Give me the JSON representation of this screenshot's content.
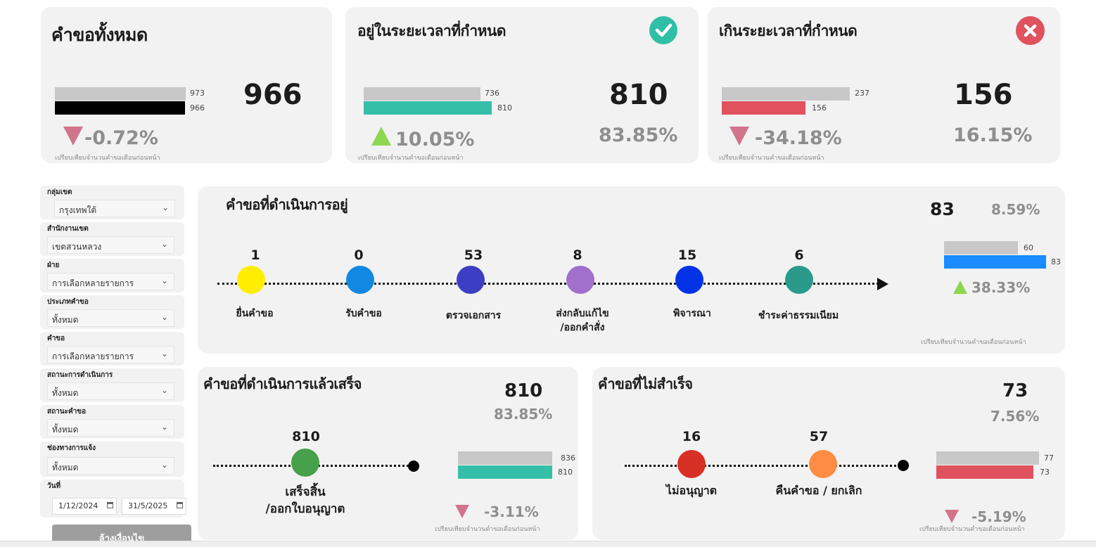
{
  "colors": {
    "gray_bar": "#c8c8c8",
    "teal": "#36bfa8",
    "red": "#e0525e",
    "black": "#000000",
    "blue": "#1a8cff",
    "card": "#f2f2f2",
    "down": "#d2748c",
    "up": "#8cd650"
  },
  "compare_note": "เปรียบเทียบจำนวนคำขอเดือนก่อนหน้า",
  "total": {
    "title": "คำขอทั้งหมด",
    "value": "966",
    "prev": "973",
    "curr": "966",
    "change": "-0.72%",
    "direction": "down"
  },
  "ontime": {
    "title": "อยู่ในระยะเวลาที่กำหนด",
    "icon": "check-icon",
    "value": "810",
    "percent": "83.85%",
    "prev": "736",
    "curr": "810",
    "change": "10.05%",
    "direction": "up"
  },
  "overdue": {
    "title": "เกินระยะเวลาที่กำหนด",
    "icon": "close-icon",
    "value": "156",
    "percent": "16.15%",
    "prev": "237",
    "curr": "156",
    "change": "-34.18%",
    "direction": "down"
  },
  "filters": [
    {
      "label": "กลุ่มเขต",
      "value": "กรุงเทพใต้"
    },
    {
      "label": "สำนักงานเขต",
      "value": "เขตสวนหลวง"
    },
    {
      "label": "ฝ่าย",
      "value": "การเลือกหลายรายการ"
    },
    {
      "label": "ประเภทคำขอ",
      "value": "ทั้งหมด"
    },
    {
      "label": "คำขอ",
      "value": "การเลือกหลายรายการ"
    },
    {
      "label": "สถานะการดำเนินการ",
      "value": "ทั้งหมด"
    },
    {
      "label": "สถานะคำขอ",
      "value": "ทั้งหมด"
    },
    {
      "label": "ช่องทางการแจ้ง",
      "value": "ทั้งหมด"
    }
  ],
  "date_filter": {
    "label": "วันที่",
    "start": "1/12/2024",
    "end": "31/5/2025"
  },
  "clear_button": "ล้างเงื่อนไข",
  "inprogress": {
    "title": "คำขอที่ดำเนินการอยู่",
    "value": "83",
    "percent": "8.59%",
    "prev": "60",
    "curr": "83",
    "change": "38.33%",
    "direction": "up",
    "stages": [
      {
        "count": "1",
        "label": "ยื่นคำขอ",
        "label2": "",
        "color": "#ffee00"
      },
      {
        "count": "0",
        "label": "รับคำขอ",
        "label2": "",
        "color": "#1288e2"
      },
      {
        "count": "53",
        "label": "ตรวจเอกสาร",
        "label2": "",
        "color": "#3c3fc4"
      },
      {
        "count": "8",
        "label": "ส่งกลับแก้ไข",
        "label2": "/ออกคำสั่ง",
        "color": "#a070cc"
      },
      {
        "count": "15",
        "label": "พิจารณา",
        "label2": "",
        "color": "#0033e6"
      },
      {
        "count": "6",
        "label": "ชำระค่าธรรมเนียม",
        "label2": "",
        "color": "#2b9a8a"
      }
    ]
  },
  "completed": {
    "title": "คำขอที่ดำเนินการแล้วเสร็จ",
    "value": "810",
    "percent": "83.85%",
    "prev": "836",
    "curr": "810",
    "change": "-3.11%",
    "direction": "down",
    "stages": [
      {
        "count": "810",
        "label": "เสร็จสิ้น",
        "label2": "/ออกใบอนุญาต",
        "color": "#47a04a"
      }
    ]
  },
  "failed": {
    "title": "คำขอที่ไม่สำเร็จ",
    "value": "73",
    "percent": "7.56%",
    "prev": "77",
    "curr": "73",
    "change": "-5.19%",
    "direction": "down",
    "stages": [
      {
        "count": "16",
        "label": "ไม่อนุญาต",
        "label2": "",
        "color": "#d93025"
      },
      {
        "count": "57",
        "label": "คืนคำขอ / ยกเลิก",
        "label2": "",
        "color": "#ff8c42"
      }
    ]
  }
}
